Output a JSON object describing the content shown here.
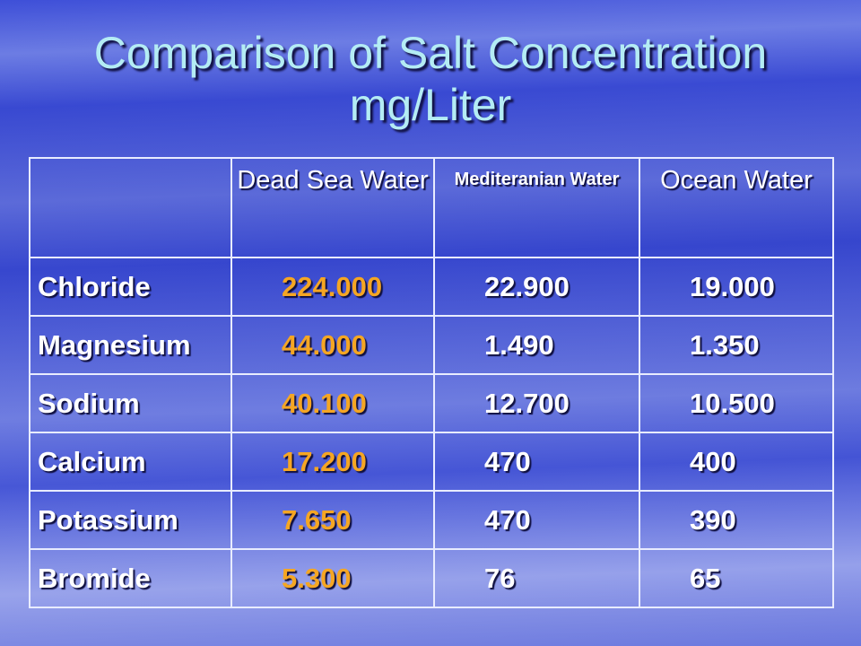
{
  "title_lines": [
    "Comparison of Salt Concentration",
    "mg/Liter"
  ],
  "table": {
    "columns": [
      "Dead Sea Water",
      "Mediteranian Water",
      "Ocean Water"
    ],
    "rows": [
      [
        "Chloride",
        "224.000",
        "22.900",
        "19.000"
      ],
      [
        "Magnesium",
        "44.000",
        "1.490",
        "1.350"
      ],
      [
        "Sodium",
        "40.100",
        "12.700",
        "10.500"
      ],
      [
        "Calcium",
        "17.200",
        "470",
        "400"
      ],
      [
        "Potassium",
        "7.650",
        "470",
        "390"
      ],
      [
        "Bromide",
        "5.300",
        "76",
        "65"
      ]
    ]
  }
}
